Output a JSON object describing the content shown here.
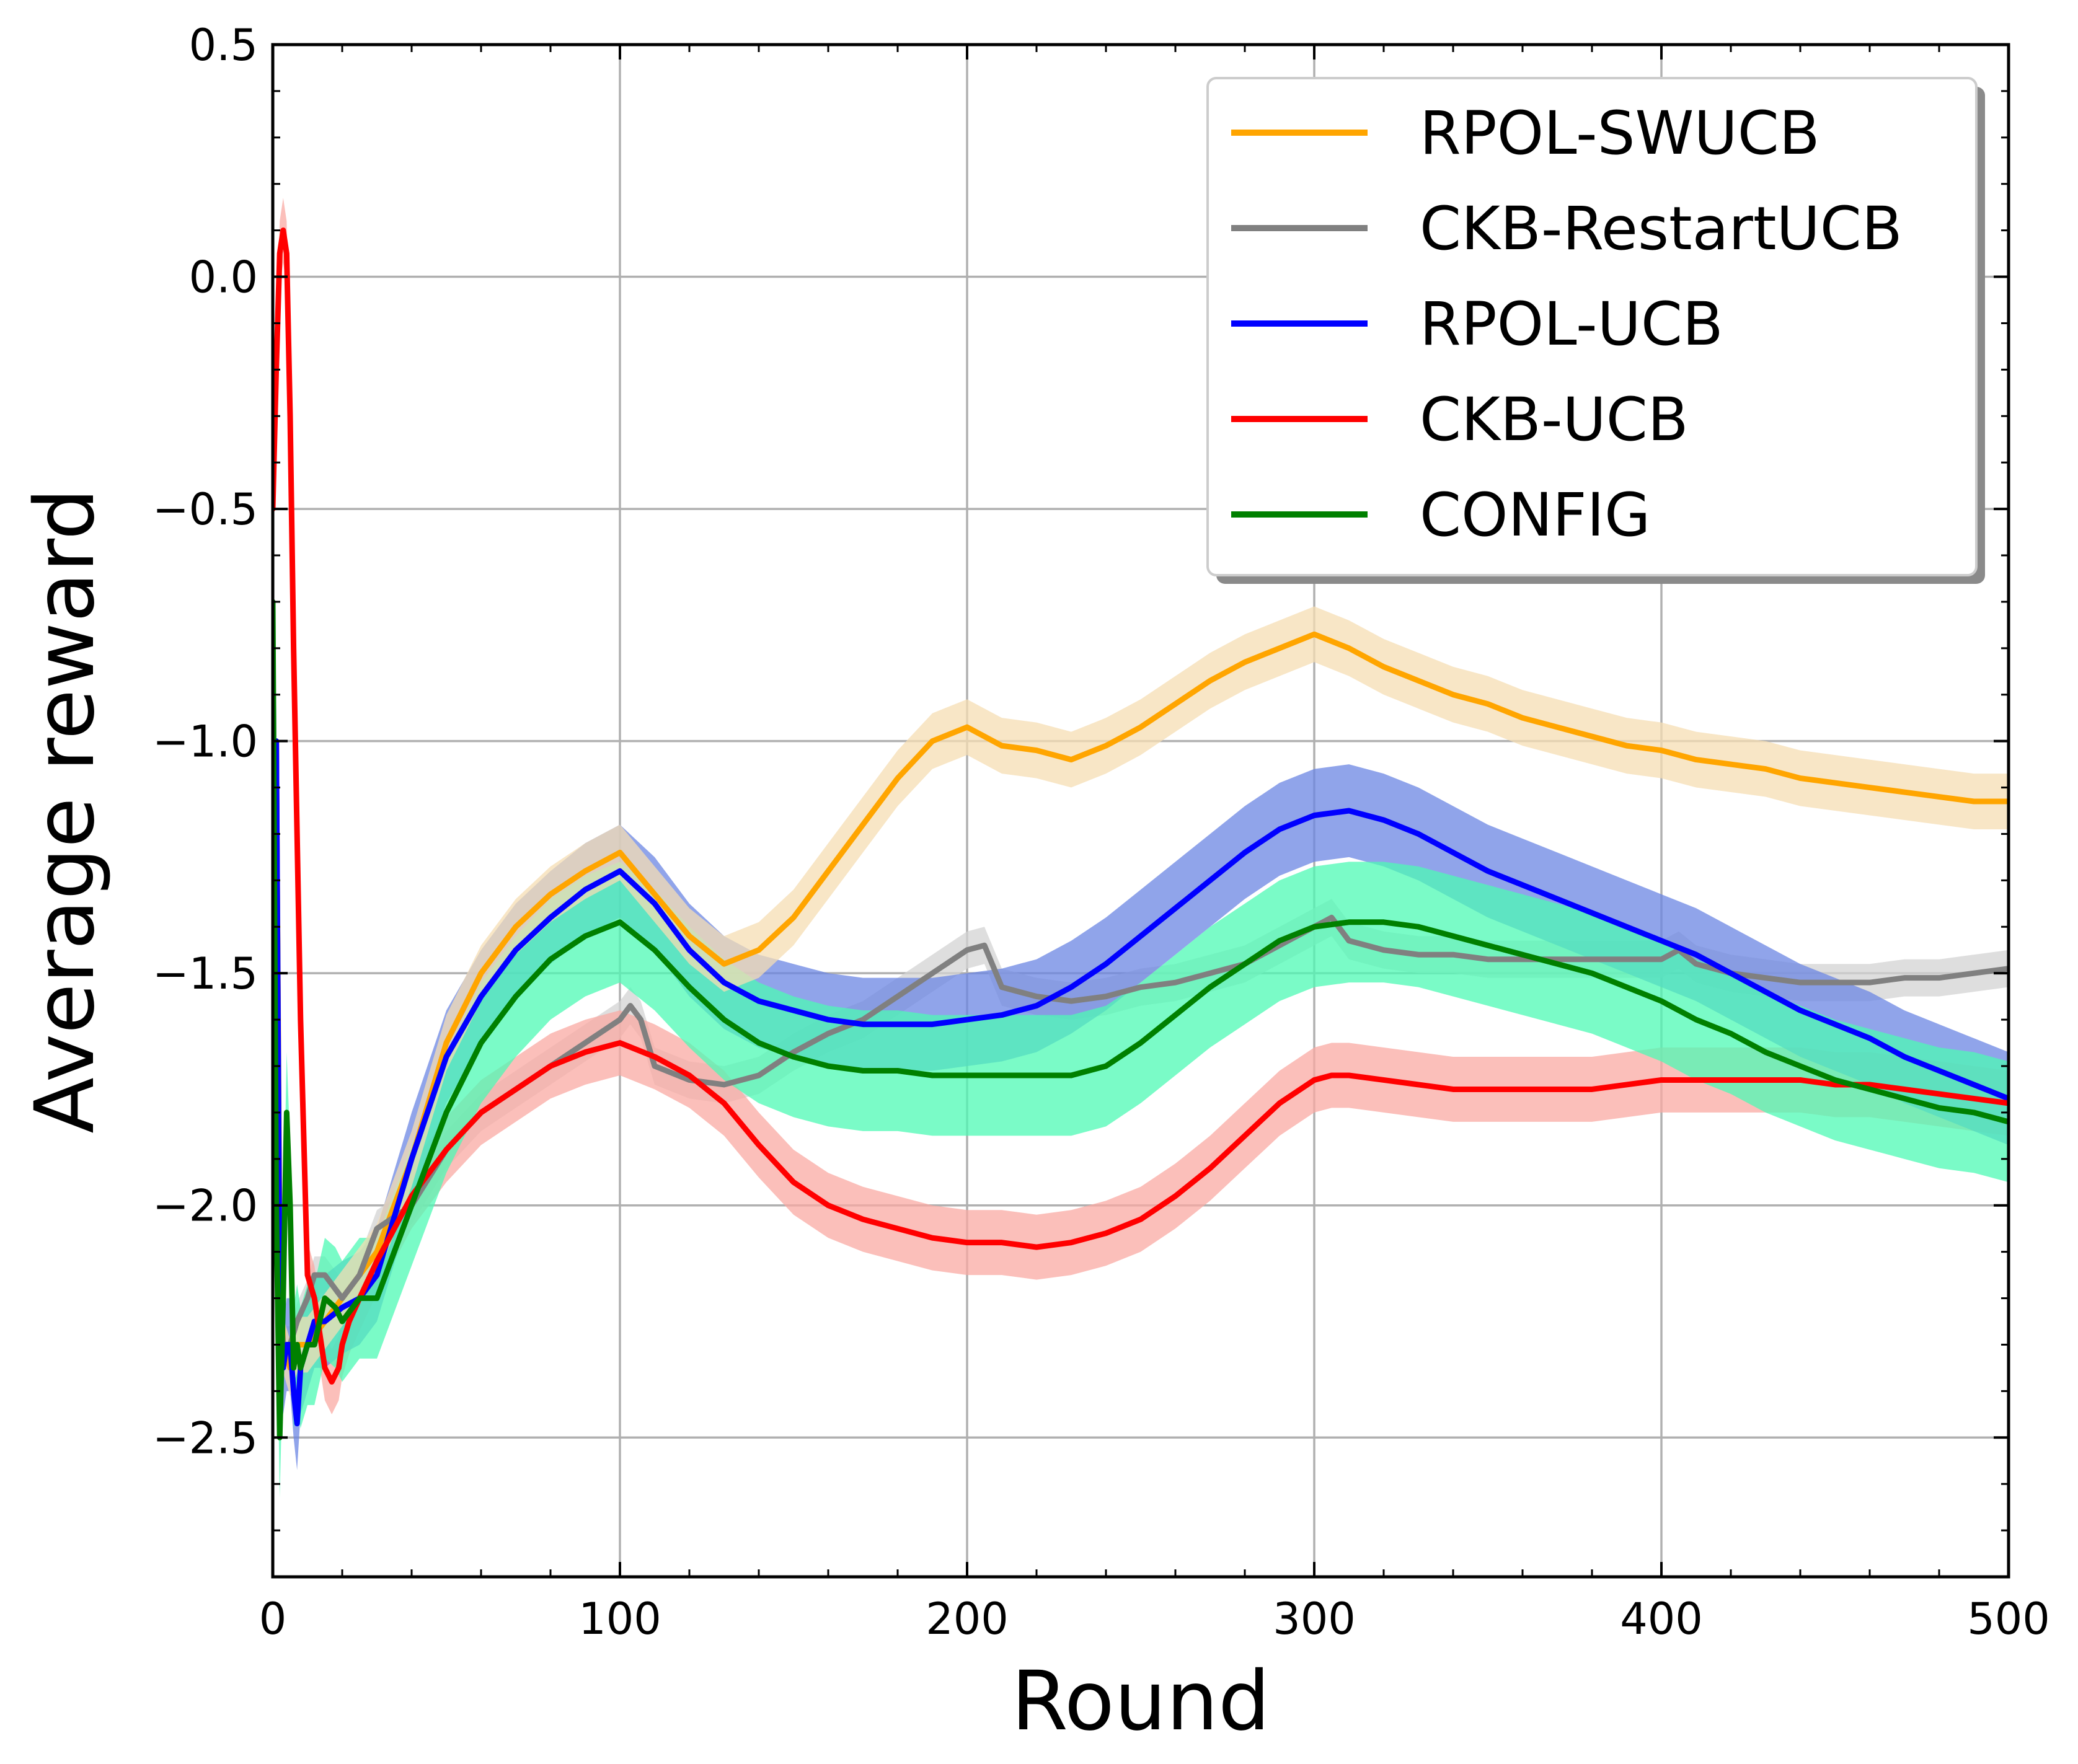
{
  "chart_data": {
    "type": "line",
    "title": "",
    "xlabel": "Round",
    "ylabel": "Average reward",
    "xlim": [
      0,
      500
    ],
    "ylim": [
      -2.8,
      0.5
    ],
    "xticks": [
      0,
      100,
      200,
      300,
      400,
      500
    ],
    "xtick_labels": [
      "0",
      "100",
      "200",
      "300",
      "400",
      "500"
    ],
    "yticks": [
      -2.5,
      -2.0,
      -1.5,
      -1.0,
      -0.5,
      0.0,
      0.5
    ],
    "ytick_labels": [
      "−2.5",
      "−2.0",
      "−1.5",
      "−1.0",
      "−0.5",
      "0.0",
      "0.5"
    ],
    "grid": true,
    "legend_position": "top-right",
    "series": [
      {
        "name": "RPOL-SWUCB",
        "color": "#ffa500",
        "band_color": "#f5deb3",
        "x": [
          1,
          2,
          3,
          5,
          7,
          10,
          15,
          20,
          25,
          30,
          40,
          50,
          60,
          70,
          80,
          90,
          100,
          110,
          120,
          130,
          140,
          150,
          160,
          170,
          180,
          190,
          200,
          210,
          220,
          230,
          240,
          250,
          260,
          270,
          280,
          290,
          300,
          310,
          320,
          330,
          340,
          350,
          360,
          370,
          380,
          390,
          400,
          410,
          420,
          430,
          440,
          450,
          460,
          470,
          480,
          490,
          500
        ],
        "y": [
          -1.0,
          -2.1,
          -2.3,
          -2.35,
          -2.3,
          -2.3,
          -2.25,
          -2.2,
          -2.15,
          -2.1,
          -1.9,
          -1.65,
          -1.5,
          -1.4,
          -1.33,
          -1.28,
          -1.24,
          -1.33,
          -1.42,
          -1.48,
          -1.45,
          -1.38,
          -1.28,
          -1.18,
          -1.08,
          -1.0,
          -0.97,
          -1.01,
          -1.02,
          -1.04,
          -1.01,
          -0.97,
          -0.92,
          -0.87,
          -0.83,
          -0.8,
          -0.77,
          -0.8,
          -0.84,
          -0.87,
          -0.9,
          -0.92,
          -0.95,
          -0.97,
          -0.99,
          -1.01,
          -1.02,
          -1.04,
          -1.05,
          -1.06,
          -1.08,
          -1.09,
          -1.1,
          -1.11,
          -1.12,
          -1.13,
          -1.13
        ],
        "band": 0.06
      },
      {
        "name": "CKB-RestartUCB",
        "color": "#808080",
        "band_color": "#d3d3d3",
        "x": [
          1,
          2,
          3,
          5,
          7,
          10,
          12,
          15,
          20,
          25,
          30,
          40,
          50,
          60,
          70,
          80,
          90,
          100,
          103,
          106,
          110,
          120,
          130,
          140,
          150,
          160,
          170,
          180,
          190,
          200,
          205,
          210,
          220,
          230,
          240,
          250,
          260,
          270,
          280,
          290,
          300,
          305,
          310,
          320,
          330,
          340,
          350,
          360,
          370,
          380,
          390,
          400,
          405,
          410,
          420,
          430,
          440,
          450,
          460,
          470,
          480,
          490,
          500
        ],
        "y": [
          -1.0,
          -2.2,
          -2.3,
          -2.3,
          -2.25,
          -2.2,
          -2.15,
          -2.15,
          -2.2,
          -2.15,
          -2.05,
          -2.0,
          -1.88,
          -1.8,
          -1.75,
          -1.7,
          -1.65,
          -1.6,
          -1.57,
          -1.6,
          -1.7,
          -1.73,
          -1.74,
          -1.72,
          -1.67,
          -1.63,
          -1.6,
          -1.55,
          -1.5,
          -1.45,
          -1.44,
          -1.53,
          -1.55,
          -1.56,
          -1.55,
          -1.53,
          -1.52,
          -1.5,
          -1.48,
          -1.44,
          -1.4,
          -1.38,
          -1.43,
          -1.45,
          -1.46,
          -1.46,
          -1.47,
          -1.47,
          -1.47,
          -1.47,
          -1.47,
          -1.47,
          -1.45,
          -1.48,
          -1.5,
          -1.51,
          -1.52,
          -1.52,
          -1.52,
          -1.51,
          -1.51,
          -1.5,
          -1.49
        ],
        "band": 0.04
      },
      {
        "name": "RPOL-UCB",
        "color": "#0000ff",
        "band_color": "#6b85e3",
        "x": [
          1,
          2,
          3,
          4,
          5,
          6,
          7,
          8,
          10,
          12,
          15,
          20,
          25,
          30,
          40,
          50,
          60,
          70,
          80,
          90,
          100,
          110,
          120,
          130,
          140,
          150,
          160,
          170,
          180,
          190,
          200,
          210,
          220,
          230,
          240,
          250,
          260,
          270,
          280,
          290,
          300,
          310,
          320,
          330,
          340,
          350,
          360,
          370,
          380,
          390,
          400,
          410,
          420,
          430,
          440,
          450,
          460,
          470,
          480,
          490,
          500
        ],
        "y": [
          -1.0,
          -2.2,
          -2.35,
          -2.3,
          -2.3,
          -2.4,
          -2.47,
          -2.35,
          -2.3,
          -2.25,
          -2.25,
          -2.22,
          -2.2,
          -2.15,
          -1.9,
          -1.68,
          -1.55,
          -1.45,
          -1.38,
          -1.32,
          -1.28,
          -1.35,
          -1.45,
          -1.52,
          -1.56,
          -1.58,
          -1.6,
          -1.61,
          -1.61,
          -1.61,
          -1.6,
          -1.59,
          -1.57,
          -1.53,
          -1.48,
          -1.42,
          -1.36,
          -1.3,
          -1.24,
          -1.19,
          -1.16,
          -1.15,
          -1.17,
          -1.2,
          -1.24,
          -1.28,
          -1.31,
          -1.34,
          -1.37,
          -1.4,
          -1.43,
          -1.46,
          -1.5,
          -1.54,
          -1.58,
          -1.61,
          -1.64,
          -1.68,
          -1.71,
          -1.74,
          -1.77
        ],
        "band": 0.1
      },
      {
        "name": "CKB-UCB",
        "color": "#ff0000",
        "band_color": "#f9a9a3",
        "x": [
          0,
          1,
          2,
          3,
          4,
          5,
          6,
          8,
          10,
          12,
          14,
          15,
          17,
          19,
          20,
          22,
          25,
          30,
          35,
          40,
          50,
          60,
          70,
          80,
          90,
          100,
          110,
          120,
          130,
          140,
          150,
          160,
          170,
          180,
          190,
          200,
          210,
          220,
          230,
          240,
          250,
          260,
          270,
          280,
          290,
          300,
          305,
          310,
          320,
          330,
          340,
          350,
          360,
          370,
          380,
          390,
          400,
          410,
          420,
          430,
          440,
          450,
          460,
          470,
          480,
          490,
          500
        ],
        "y": [
          -0.5,
          -0.2,
          0.05,
          0.1,
          0.05,
          -0.3,
          -0.8,
          -1.6,
          -2.15,
          -2.2,
          -2.3,
          -2.35,
          -2.38,
          -2.35,
          -2.3,
          -2.25,
          -2.2,
          -2.12,
          -2.05,
          -1.98,
          -1.88,
          -1.8,
          -1.75,
          -1.7,
          -1.67,
          -1.65,
          -1.68,
          -1.72,
          -1.78,
          -1.87,
          -1.95,
          -2.0,
          -2.03,
          -2.05,
          -2.07,
          -2.08,
          -2.08,
          -2.09,
          -2.08,
          -2.06,
          -2.03,
          -1.98,
          -1.92,
          -1.85,
          -1.78,
          -1.73,
          -1.72,
          -1.72,
          -1.73,
          -1.74,
          -1.75,
          -1.75,
          -1.75,
          -1.75,
          -1.75,
          -1.74,
          -1.73,
          -1.73,
          -1.73,
          -1.73,
          -1.73,
          -1.74,
          -1.74,
          -1.75,
          -1.76,
          -1.77,
          -1.78
        ],
        "band": 0.07
      },
      {
        "name": "CONFIG",
        "color": "#008000",
        "band_color": "#4dfab4",
        "x": [
          0,
          1,
          2,
          3,
          4,
          5,
          6,
          7,
          8,
          10,
          12,
          15,
          18,
          20,
          25,
          30,
          35,
          40,
          50,
          60,
          70,
          80,
          90,
          100,
          110,
          120,
          130,
          140,
          150,
          160,
          170,
          180,
          190,
          200,
          210,
          220,
          230,
          240,
          250,
          260,
          270,
          280,
          290,
          300,
          310,
          320,
          330,
          340,
          350,
          360,
          370,
          380,
          390,
          400,
          410,
          420,
          430,
          440,
          450,
          460,
          470,
          480,
          490,
          500
        ],
        "y": [
          -0.7,
          -2.0,
          -2.5,
          -2.2,
          -1.8,
          -2.0,
          -2.35,
          -2.3,
          -2.35,
          -2.3,
          -2.3,
          -2.2,
          -2.22,
          -2.25,
          -2.2,
          -2.2,
          -2.1,
          -2.0,
          -1.8,
          -1.65,
          -1.55,
          -1.47,
          -1.42,
          -1.39,
          -1.45,
          -1.53,
          -1.6,
          -1.65,
          -1.68,
          -1.7,
          -1.71,
          -1.71,
          -1.72,
          -1.72,
          -1.72,
          -1.72,
          -1.72,
          -1.7,
          -1.65,
          -1.59,
          -1.53,
          -1.48,
          -1.43,
          -1.4,
          -1.39,
          -1.39,
          -1.4,
          -1.42,
          -1.44,
          -1.46,
          -1.48,
          -1.5,
          -1.53,
          -1.56,
          -1.6,
          -1.63,
          -1.67,
          -1.7,
          -1.73,
          -1.75,
          -1.77,
          -1.79,
          -1.8,
          -1.82
        ],
        "band": 0.13
      }
    ]
  }
}
